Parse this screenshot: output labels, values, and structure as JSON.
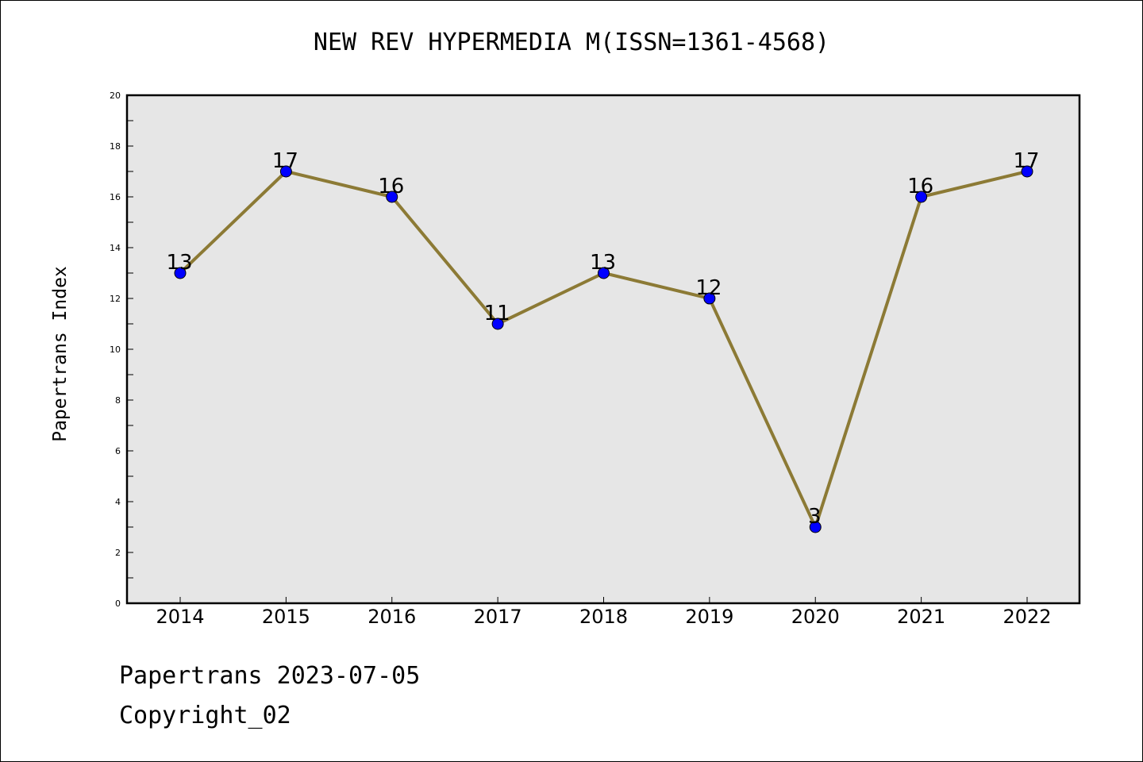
{
  "title": "NEW REV HYPERMEDIA M(ISSN=1361-4568)",
  "footer": {
    "date_line": "Papertrans 2023-07-05",
    "copyright_line": "Copyright_02"
  },
  "colors": {
    "line": "#8c7a35",
    "marker_fill": "#0000ff",
    "marker_edge": "#000000",
    "plot_background": "#e6e6e6"
  },
  "chart_data": {
    "type": "line",
    "title": "NEW REV HYPERMEDIA M(ISSN=1361-4568)",
    "xlabel": "",
    "ylabel": "Papertrans Index",
    "categories": [
      "2014",
      "2015",
      "2016",
      "2017",
      "2018",
      "2019",
      "2020",
      "2021",
      "2022"
    ],
    "values": [
      13,
      17,
      16,
      11,
      13,
      12,
      3,
      16,
      17
    ],
    "data_labels": [
      "13",
      "17",
      "16",
      "11",
      "13",
      "12",
      "3",
      "16",
      "17"
    ],
    "ylim": [
      0,
      20
    ],
    "yticks": [
      "0",
      "2",
      "4",
      "6",
      "8",
      "10",
      "12",
      "14",
      "16",
      "18",
      "20"
    ],
    "grid": false,
    "legend": "none"
  }
}
